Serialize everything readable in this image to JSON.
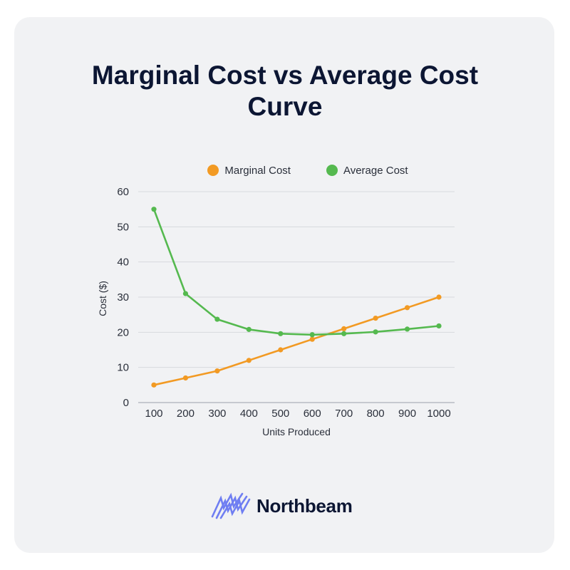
{
  "chart_data": {
    "type": "line",
    "title_lines": [
      "Marginal Cost vs Average Cost",
      "Curve"
    ],
    "xlabel": "Units Produced",
    "ylabel": "Cost ($)",
    "categories": [
      "100",
      "200",
      "300",
      "400",
      "500",
      "600",
      "700",
      "800",
      "900",
      "1000"
    ],
    "ylim": [
      0,
      60
    ],
    "yticks": [
      0,
      10,
      20,
      30,
      40,
      50,
      60
    ],
    "grid": true,
    "legend_position": "top-center",
    "series": [
      {
        "name": "Marginal Cost",
        "color": "#f29a23",
        "values": [
          5,
          7,
          9,
          12,
          15,
          18,
          21,
          24,
          27,
          30
        ]
      },
      {
        "name": "Average Cost",
        "color": "#55b94f",
        "values": [
          55,
          31,
          23.7,
          20.8,
          19.6,
          19.3,
          19.6,
          20.1,
          20.9,
          21.8
        ]
      }
    ]
  },
  "brand": {
    "name": "Northbeam",
    "logo_color": "#6f7ef2",
    "text_color": "#0c1633"
  }
}
